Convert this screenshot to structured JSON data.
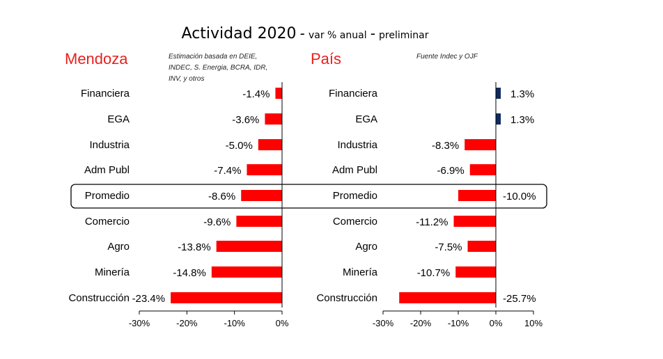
{
  "chart_data": [
    {
      "type": "bar",
      "orientation": "horizontal",
      "title": "Mendoza",
      "note": [
        "Estimación basada en DEIE,",
        "INDEC, S. Energia, BCRA, IDR,",
        "INV, y otros"
      ],
      "categories": [
        "Financiera",
        "EGA",
        "Industria",
        "Adm Publ",
        "Promedio",
        "Comercio",
        "Agro",
        "Minería",
        "Construcción"
      ],
      "values": [
        -1.4,
        -3.6,
        -5.0,
        -7.4,
        -8.6,
        -9.6,
        -13.8,
        -14.8,
        -23.4
      ],
      "value_labels": [
        "-1.4%",
        "-3.6%",
        "-5.0%",
        "-7.4%",
        "-8.6%",
        "-9.6%",
        "-13.8%",
        "-14.8%",
        "-23.4%"
      ],
      "xlim": [
        -30,
        0
      ],
      "ticks": [
        "-30%",
        "-20%",
        "-10%",
        "0%"
      ],
      "tick_values": [
        -30,
        -20,
        -10,
        0
      ],
      "bar_colors": {
        "negative": "#ff0000",
        "positive": "#0d2b5e"
      }
    },
    {
      "type": "bar",
      "orientation": "horizontal",
      "title": "País",
      "note": [
        "Fuente Indec y OJF"
      ],
      "categories": [
        "Financiera",
        "EGA",
        "Industria",
        "Adm Publ",
        "Promedio",
        "Comercio",
        "Agro",
        "Minería",
        "Construcción"
      ],
      "values": [
        1.3,
        1.3,
        -8.3,
        -6.9,
        -10.0,
        -11.2,
        -7.5,
        -10.7,
        -25.7
      ],
      "value_labels": [
        "1.3%",
        "1.3%",
        "-8.3%",
        "-6.9%",
        "-10.0%",
        "-11.2%",
        "-7.5%",
        "-10.7%",
        "-25.7%"
      ],
      "label_side": [
        "right",
        "right",
        "left",
        "left",
        "right",
        "left",
        "left",
        "left",
        "right"
      ],
      "xlim": [
        -30,
        10
      ],
      "ticks": [
        "-30%",
        "-20%",
        "-10%",
        "0%",
        "10%"
      ],
      "tick_values": [
        -30,
        -20,
        -10,
        0,
        10
      ],
      "bar_colors": {
        "negative": "#ff0000",
        "positive": "#0d2b5e"
      }
    }
  ],
  "header": {
    "title_main": "Actividad 2020",
    "sep": "-",
    "title_sub1": "var % anual",
    "title_sub2": "preliminar"
  },
  "highlight": "Promedio",
  "title_color": "#e8201e"
}
